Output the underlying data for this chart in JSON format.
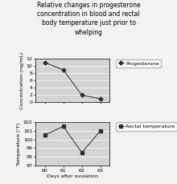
{
  "title": "Relative changes in progesterone\nconcentration in blood and rectal\nbody temperature just prior to\nwhelping",
  "title_fontsize": 5.5,
  "days": [
    60,
    61,
    62,
    63
  ],
  "progesterone": [
    11.0,
    9.0,
    2.0,
    1.0
  ],
  "rectal_temp": [
    100.5,
    101.5,
    98.5,
    101.0
  ],
  "prog_ylabel": "Concentration (ng/mL)",
  "temp_ylabel": "Temperature (°F)",
  "xlabel": "Days after ovulation",
  "prog_ylim": [
    0,
    12
  ],
  "prog_yticks": [
    0,
    2,
    4,
    6,
    8,
    10,
    12
  ],
  "temp_ylim": [
    97,
    102
  ],
  "temp_yticks": [
    97,
    98,
    99,
    100,
    101,
    102
  ],
  "prog_legend": "Progesterone",
  "temp_legend": "Rectal temperature",
  "line_color": "#2c2c2c",
  "marker_prog": "D",
  "marker_temp": "s",
  "bg_color": "#d4d4d4",
  "fig_bg": "#f2f2f2",
  "axis_label_fontsize": 4.5,
  "tick_fontsize": 4.5,
  "legend_fontsize": 4.5
}
